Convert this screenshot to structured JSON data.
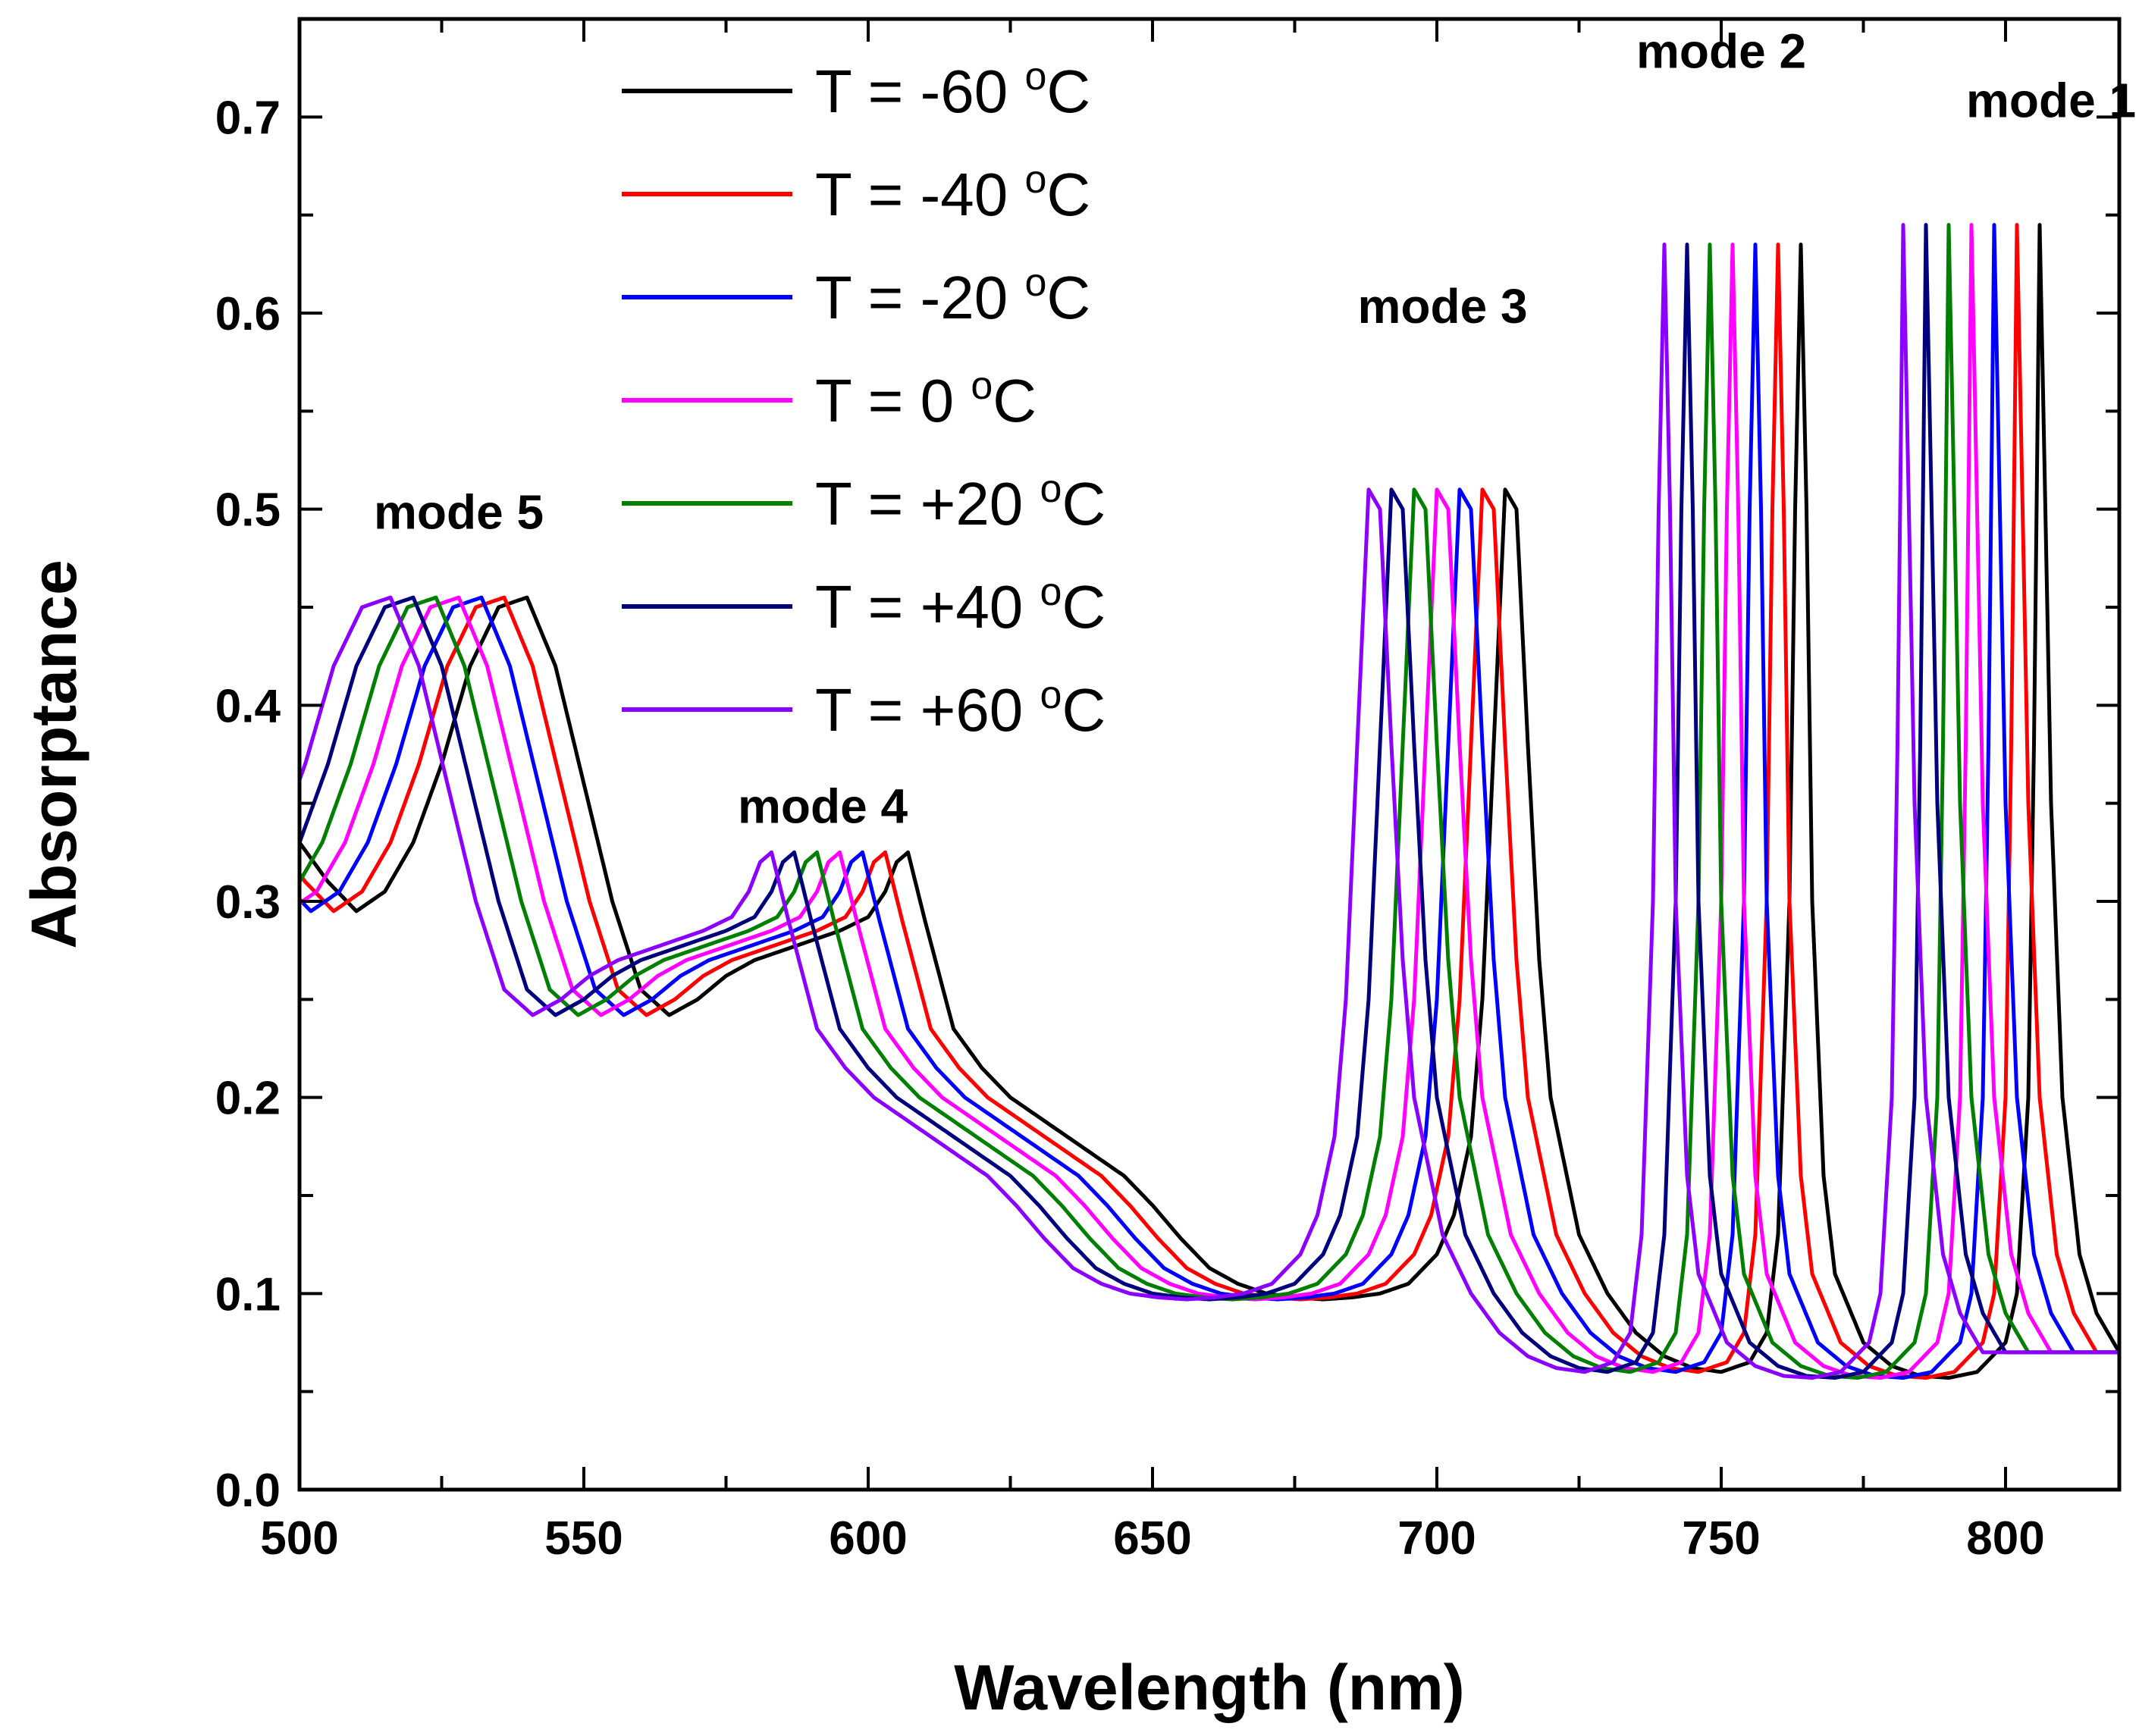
{
  "chart_data": {
    "type": "line",
    "title": "",
    "xlabel": "Wavelength (nm)",
    "ylabel": "Absorptance",
    "xlim": [
      500,
      820
    ],
    "ylim": [
      0,
      0.75
    ],
    "xticks": [
      "500",
      "550",
      "600",
      "650",
      "700",
      "750",
      "800"
    ],
    "yticks": [
      "0.0",
      "0.1",
      "0.2",
      "0.3",
      "0.4",
      "0.5",
      "0.6",
      "0.7"
    ],
    "grid": false,
    "legend_position": "top-center",
    "series": [
      {
        "name": "T = -60 °C",
        "label_parts": [
          "T = -60 ",
          "o",
          "C"
        ],
        "color": "#000000",
        "shift": 0
      },
      {
        "name": "T = -40 °C",
        "label_parts": [
          "T = -40 ",
          "o",
          "C"
        ],
        "color": "#ff0000",
        "shift": -4
      },
      {
        "name": "T = -20 °C",
        "label_parts": [
          "T = -20 ",
          "o",
          "C"
        ],
        "color": "#0000ff",
        "shift": -8
      },
      {
        "name": "T = 0 °C",
        "label_parts": [
          "T =     0 ",
          "o",
          "C"
        ],
        "color": "#ff00ff",
        "shift": -12
      },
      {
        "name": "T = +20 °C",
        "label_parts": [
          "T = +20 ",
          "o",
          "C"
        ],
        "color": "#007f00",
        "shift": -16
      },
      {
        "name": "T = +40 °C",
        "label_parts": [
          "T = +40 ",
          "o",
          "C"
        ],
        "color": "#00007f",
        "shift": -20
      },
      {
        "name": "T = +60 °C",
        "label_parts": [
          "T = +60 ",
          "o",
          "C"
        ],
        "color": "#8b00ff",
        "shift": -24
      }
    ],
    "reference_curve_T_minus60": {
      "x": [
        500,
        505,
        510,
        515,
        520,
        525,
        530,
        535,
        540,
        545,
        550,
        555,
        560,
        565,
        570,
        575,
        580,
        585,
        590,
        595,
        600,
        603,
        605,
        607,
        610,
        615,
        620,
        625,
        630,
        635,
        640,
        645,
        650,
        655,
        660,
        665,
        670,
        675,
        680,
        685,
        690,
        695,
        700,
        703,
        706,
        708,
        710,
        712,
        714,
        716,
        718,
        720,
        725,
        730,
        735,
        740,
        745,
        750,
        755,
        758,
        760,
        762,
        763,
        764,
        765,
        766,
        768,
        770,
        775,
        780,
        785,
        790,
        795,
        800,
        802,
        804,
        805,
        806,
        807,
        808,
        810,
        813,
        816,
        820
      ],
      "y": [
        0.33,
        0.31,
        0.295,
        0.305,
        0.33,
        0.37,
        0.42,
        0.45,
        0.455,
        0.42,
        0.36,
        0.3,
        0.255,
        0.242,
        0.25,
        0.262,
        0.27,
        0.275,
        0.28,
        0.285,
        0.292,
        0.305,
        0.32,
        0.325,
        0.29,
        0.235,
        0.215,
        0.2,
        0.19,
        0.18,
        0.17,
        0.16,
        0.145,
        0.128,
        0.113,
        0.105,
        0.1,
        0.098,
        0.097,
        0.098,
        0.1,
        0.105,
        0.12,
        0.14,
        0.18,
        0.25,
        0.38,
        0.51,
        0.5,
        0.38,
        0.27,
        0.2,
        0.13,
        0.1,
        0.08,
        0.068,
        0.062,
        0.06,
        0.065,
        0.08,
        0.13,
        0.3,
        0.5,
        0.635,
        0.5,
        0.3,
        0.16,
        0.11,
        0.075,
        0.063,
        0.058,
        0.057,
        0.06,
        0.075,
        0.1,
        0.2,
        0.38,
        0.645,
        0.5,
        0.35,
        0.2,
        0.12,
        0.09,
        0.07
      ]
    },
    "annotations": [
      {
        "text": "mode 1",
        "x": 808,
        "y": 0.7
      },
      {
        "text": "mode 2",
        "x": 750,
        "y": 0.725
      },
      {
        "text": "mode 3",
        "x": 701,
        "y": 0.595
      },
      {
        "text": "mode 4",
        "x": 592,
        "y": 0.34
      },
      {
        "text": "mode 5",
        "x": 528,
        "y": 0.49
      }
    ]
  }
}
